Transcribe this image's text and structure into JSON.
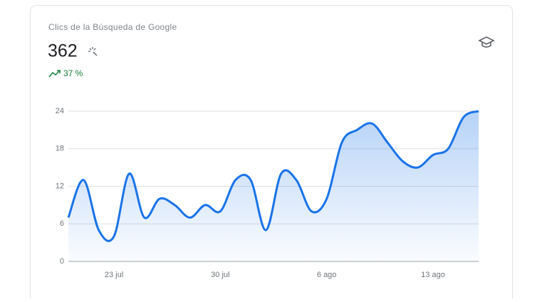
{
  "header": {
    "title": "Clics de la Búsqueda de Google",
    "value": "362",
    "change": "37 %"
  },
  "chart_data": {
    "type": "line",
    "categories": [
      null,
      null,
      null,
      "23 jul",
      null,
      null,
      null,
      null,
      null,
      null,
      "30 jul",
      null,
      null,
      null,
      null,
      null,
      null,
      "6 ago",
      null,
      null,
      null,
      null,
      null,
      null,
      "13 ago",
      null,
      null,
      null
    ],
    "series": [
      {
        "name": "Clics",
        "color": "#1a73e8",
        "values": [
          7,
          13,
          5,
          4,
          14,
          7,
          10,
          9,
          7,
          9,
          8,
          13,
          13,
          5,
          14,
          13,
          8,
          10,
          19,
          21,
          22,
          19,
          16,
          15,
          17,
          18,
          23,
          24
        ]
      }
    ],
    "ylim": [
      0,
      24
    ],
    "yticks": [
      0,
      6,
      12,
      18,
      24
    ],
    "grid": true
  }
}
